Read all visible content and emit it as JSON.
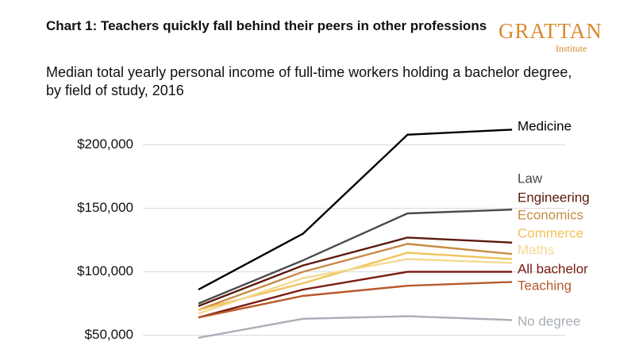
{
  "chart_data": {
    "type": "line",
    "title": "Chart 1: Teachers quickly fall behind their peers in other professions",
    "subtitle": "Median total yearly personal income of full-time workers holding a bachelor degree, by field of study, 2016",
    "logo": "GRATTAN",
    "logo_subtitle": "Institute",
    "categories": [
      null,
      null,
      null,
      null
    ],
    "ylim": [
      46000,
      216000
    ],
    "yticks": [
      {
        "value": 50000,
        "label": "$50,000"
      },
      {
        "value": 100000,
        "label": "$100,000"
      },
      {
        "value": 150000,
        "label": "$150,000"
      },
      {
        "value": 200000,
        "label": "$200,000"
      }
    ],
    "grid": true,
    "series": [
      {
        "name": "Medicine",
        "color": "#000000",
        "values": [
          86000,
          130000,
          208000,
          212000
        ]
      },
      {
        "name": "Law",
        "color": "#4a4a4a",
        "values": [
          75000,
          109000,
          146000,
          149000
        ]
      },
      {
        "name": "Engineering",
        "color": "#5a1a0c",
        "values": [
          73000,
          105000,
          127000,
          123000
        ]
      },
      {
        "name": "Economics",
        "color": "#c98a45",
        "values": [
          70000,
          100000,
          122000,
          114000
        ]
      },
      {
        "name": "Commerce",
        "color": "#f0c35a",
        "values": [
          70000,
          91000,
          115000,
          110000
        ]
      },
      {
        "name": "Maths",
        "color": "#f4d990",
        "values": [
          67000,
          95000,
          110000,
          107000
        ]
      },
      {
        "name": "All bachelor",
        "color": "#7b1a12",
        "values": [
          64000,
          86000,
          100000,
          100000
        ]
      },
      {
        "name": "Teaching",
        "color": "#b85a2b",
        "values": [
          64000,
          81000,
          89000,
          92000
        ]
      },
      {
        "name": "No degree",
        "color": "#a8aeb6",
        "values": [
          48000,
          63000,
          65000,
          62000
        ]
      }
    ]
  }
}
